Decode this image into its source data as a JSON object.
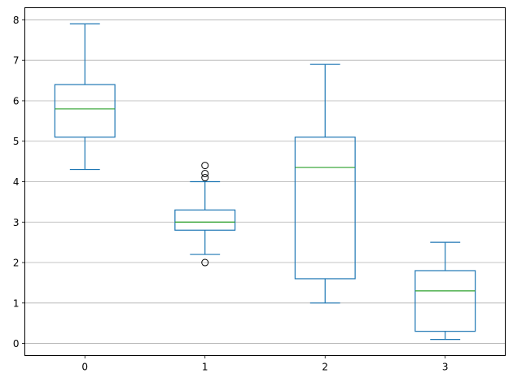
{
  "chart_data": {
    "type": "box",
    "title": "",
    "xlabel": "",
    "ylabel": "",
    "categories": [
      "0",
      "1",
      "2",
      "3"
    ],
    "ylim": [
      -0.3,
      8.3
    ],
    "yticks": [
      "0",
      "1",
      "2",
      "3",
      "4",
      "5",
      "6",
      "7",
      "8"
    ],
    "grid": "horizontal",
    "boxes": [
      {
        "category": "0",
        "whisker_low": 4.3,
        "q1": 5.1,
        "median": 5.8,
        "q3": 6.4,
        "whisker_high": 7.9,
        "outliers": []
      },
      {
        "category": "1",
        "whisker_low": 2.2,
        "q1": 2.8,
        "median": 3.0,
        "q3": 3.3,
        "whisker_high": 4.0,
        "outliers": [
          2.0,
          4.1,
          4.2,
          4.4
        ]
      },
      {
        "category": "2",
        "whisker_low": 1.0,
        "q1": 1.6,
        "median": 4.35,
        "q3": 5.1,
        "whisker_high": 6.9,
        "outliers": []
      },
      {
        "category": "3",
        "whisker_low": 0.1,
        "q1": 0.3,
        "median": 1.3,
        "q3": 1.8,
        "whisker_high": 2.5,
        "outliers": []
      }
    ],
    "colors": {
      "box": "#1f77b4",
      "median": "#2ca02c",
      "outlier": "#000000",
      "grid": "#b0b0b0",
      "axis": "#000000"
    }
  }
}
